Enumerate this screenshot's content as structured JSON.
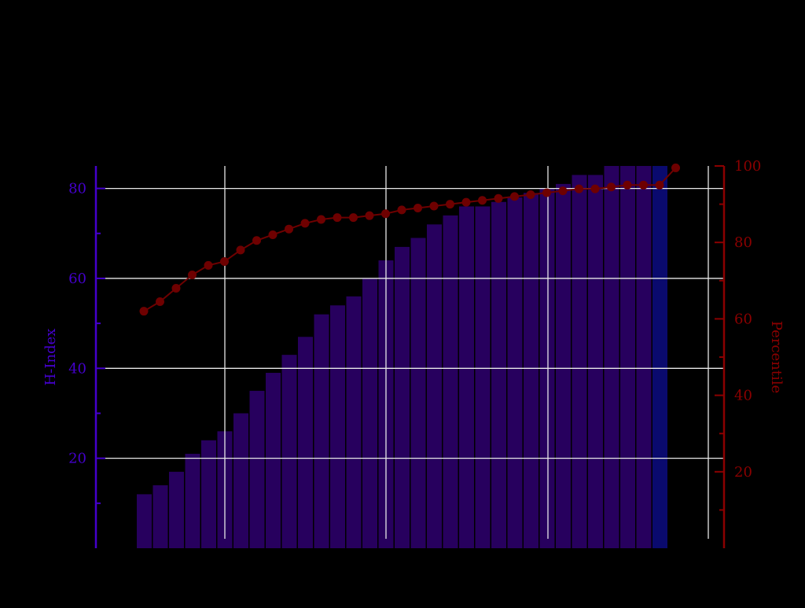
{
  "chart_data": {
    "type": "bar",
    "title": "",
    "xlabel": "",
    "grid": true,
    "left_axis": {
      "label": "H-Index",
      "ylim": [
        0,
        85
      ],
      "ticks": [
        20,
        40,
        60,
        80
      ],
      "color": "#4400cc"
    },
    "right_axis": {
      "label": "Percentile",
      "ylim": [
        0,
        100
      ],
      "ticks": [
        20,
        40,
        60,
        80,
        100
      ],
      "color": "#8b0000"
    },
    "series": [
      {
        "type": "bar",
        "axis": "left",
        "color": "#27005e",
        "last_bar_color": "#0a0a6e",
        "values": [
          12,
          14,
          17,
          21,
          24,
          26,
          30,
          35,
          39,
          43,
          47,
          52,
          54,
          56,
          60,
          64,
          67,
          69,
          72,
          74,
          76,
          76,
          77,
          78,
          79,
          80,
          81,
          83,
          83,
          85,
          85,
          85,
          85
        ]
      },
      {
        "type": "line",
        "axis": "right",
        "color": "#6e0000",
        "values": [
          62,
          64.5,
          68,
          71.5,
          74,
          75,
          78,
          80.5,
          82,
          83.5,
          85,
          86,
          86.5,
          86.5,
          87,
          87.5,
          88.5,
          89,
          89.5,
          90,
          90.5,
          91,
          91.5,
          92,
          92.5,
          93,
          93.5,
          94,
          94,
          94.5,
          95,
          95,
          95,
          99.5
        ]
      }
    ]
  }
}
